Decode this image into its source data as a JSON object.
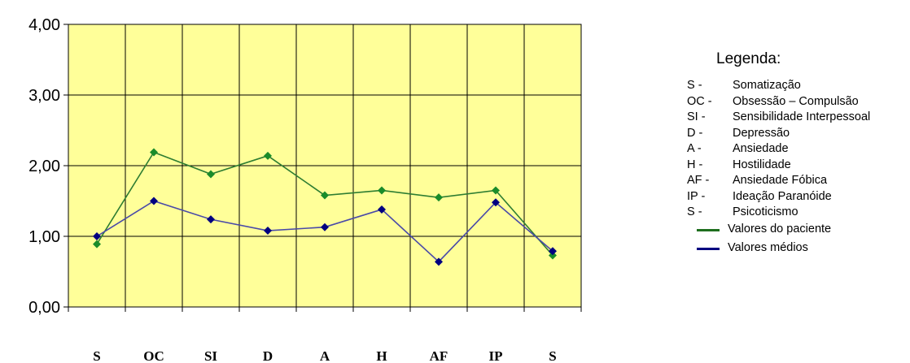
{
  "chart_data": {
    "type": "line",
    "categories": [
      "S",
      "OC",
      "SI",
      "D",
      "A",
      "H",
      "AF",
      "IP",
      "S"
    ],
    "ylim": [
      0,
      4
    ],
    "yticks": [
      "0,00",
      "1,00",
      "2,00",
      "3,00",
      "4,00"
    ],
    "grid": true,
    "background_color": "#ffff99",
    "series": [
      {
        "name": "Valores do paciente",
        "color": "#2e7d32",
        "marker_color": "#1a8c2a",
        "values": [
          0.89,
          2.19,
          1.88,
          2.14,
          1.58,
          1.65,
          1.55,
          1.65,
          0.73
        ]
      },
      {
        "name": "Valores médios",
        "color": "#4a4aa8",
        "marker_color": "#000080",
        "values": [
          1.0,
          1.5,
          1.24,
          1.08,
          1.13,
          1.38,
          0.64,
          1.48,
          0.79
        ]
      }
    ],
    "legend_placement": "right"
  },
  "legend": {
    "title": "Legenda:",
    "items": [
      {
        "code": "S -",
        "label": "Somatização"
      },
      {
        "code": "OC -",
        "label": "Obsessão – Compulsão"
      },
      {
        "code": "SI -",
        "label": "Sensibilidade Interpessoal"
      },
      {
        "code": "D -",
        "label": "Depressão"
      },
      {
        "code": "A -",
        "label": "Ansiedade"
      },
      {
        "code": "H -",
        "label": "Hostilidade"
      },
      {
        "code": "AF -",
        "label": "Ansiedade Fóbica"
      },
      {
        "code": "IP -",
        "label": "Ideação Paranóide"
      },
      {
        "code": "S -",
        "label": "Psicoticismo"
      }
    ],
    "series_items": [
      {
        "label": "Valores do paciente",
        "color": "#1e6e1e"
      },
      {
        "label": "Valores médios",
        "color": "#000080"
      }
    ]
  }
}
